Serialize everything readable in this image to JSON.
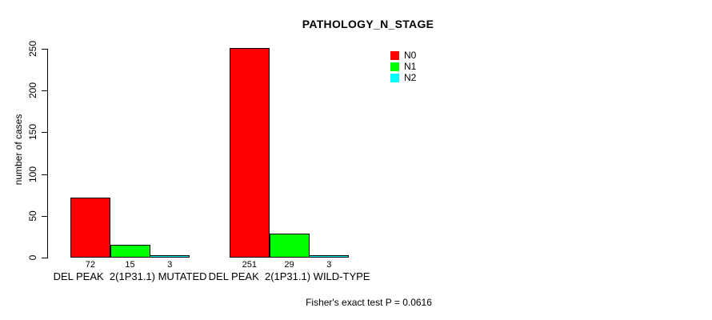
{
  "chart_data": {
    "type": "bar",
    "title": "PATHOLOGY_N_STAGE",
    "ylabel": "number of cases",
    "xlabel": "",
    "ylim": [
      0,
      250
    ],
    "yticks": [
      0,
      50,
      100,
      150,
      200,
      250
    ],
    "grid": false,
    "legend_position": "top-right",
    "categories": [
      "DEL PEAK  2(1P31.1) MUTATED",
      "DEL PEAK  2(1P31.1) WILD-TYPE"
    ],
    "series": [
      {
        "name": "N0",
        "color": "#ff0000",
        "values": [
          72,
          251
        ]
      },
      {
        "name": "N1",
        "color": "#00ff00",
        "values": [
          15,
          29
        ]
      },
      {
        "name": "N2",
        "color": "#00ffff",
        "values": [
          3,
          3
        ]
      }
    ],
    "footnote": "Fisher's exact test P = 0.0616"
  },
  "colors": {
    "background": "#ffffff",
    "axis": "#000000",
    "text": "#000000",
    "bar_border": "#000000"
  }
}
